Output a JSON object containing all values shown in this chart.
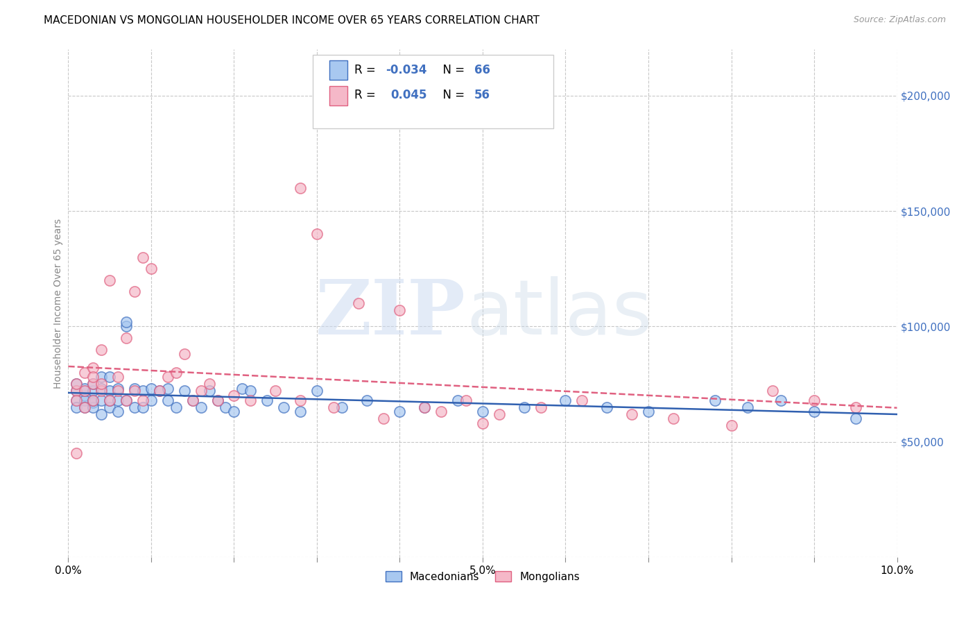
{
  "title": "MACEDONIAN VS MONGOLIAN HOUSEHOLDER INCOME OVER 65 YEARS CORRELATION CHART",
  "source": "Source: ZipAtlas.com",
  "ylabel": "Householder Income Over 65 years",
  "xlim": [
    0.0,
    0.1
  ],
  "ylim": [
    0,
    220000
  ],
  "yticks": [
    0,
    50000,
    100000,
    150000,
    200000
  ],
  "background_color": "#ffffff",
  "grid_color": "#c8c8c8",
  "macedonian_face_color": "#a8c8f0",
  "mongolian_face_color": "#f5b8c8",
  "macedonian_edge_color": "#4070c0",
  "mongolian_edge_color": "#e06080",
  "macedonian_line_color": "#3060b0",
  "mongolian_line_color": "#e06080",
  "axis_color": "#4070c0",
  "macedonian_scatter_x": [
    0.001,
    0.001,
    0.001,
    0.001,
    0.002,
    0.002,
    0.002,
    0.002,
    0.002,
    0.003,
    0.003,
    0.003,
    0.003,
    0.003,
    0.004,
    0.004,
    0.004,
    0.004,
    0.005,
    0.005,
    0.005,
    0.005,
    0.006,
    0.006,
    0.006,
    0.007,
    0.007,
    0.007,
    0.008,
    0.008,
    0.009,
    0.009,
    0.01,
    0.01,
    0.011,
    0.012,
    0.012,
    0.013,
    0.014,
    0.015,
    0.016,
    0.017,
    0.018,
    0.019,
    0.02,
    0.021,
    0.022,
    0.024,
    0.026,
    0.028,
    0.03,
    0.033,
    0.036,
    0.04,
    0.043,
    0.047,
    0.05,
    0.055,
    0.06,
    0.065,
    0.07,
    0.078,
    0.082,
    0.086,
    0.09,
    0.095
  ],
  "macedonian_scatter_y": [
    72000,
    68000,
    75000,
    65000,
    70000,
    68000,
    72000,
    65000,
    73000,
    67000,
    72000,
    65000,
    68000,
    75000,
    62000,
    68000,
    73000,
    78000,
    65000,
    72000,
    68000,
    78000,
    63000,
    68000,
    73000,
    68000,
    100000,
    102000,
    65000,
    73000,
    65000,
    72000,
    68000,
    73000,
    72000,
    68000,
    73000,
    65000,
    72000,
    68000,
    65000,
    72000,
    68000,
    65000,
    63000,
    73000,
    72000,
    68000,
    65000,
    63000,
    72000,
    65000,
    68000,
    63000,
    65000,
    68000,
    63000,
    65000,
    68000,
    65000,
    63000,
    68000,
    65000,
    68000,
    63000,
    60000
  ],
  "mongolian_scatter_x": [
    0.001,
    0.001,
    0.001,
    0.001,
    0.002,
    0.002,
    0.002,
    0.003,
    0.003,
    0.003,
    0.003,
    0.004,
    0.004,
    0.004,
    0.005,
    0.005,
    0.006,
    0.006,
    0.007,
    0.007,
    0.008,
    0.008,
    0.009,
    0.009,
    0.01,
    0.011,
    0.012,
    0.013,
    0.014,
    0.015,
    0.016,
    0.017,
    0.018,
    0.02,
    0.022,
    0.025,
    0.028,
    0.032,
    0.038,
    0.043,
    0.048,
    0.052,
    0.057,
    0.062,
    0.068,
    0.073,
    0.08,
    0.085,
    0.09,
    0.095,
    0.028,
    0.03,
    0.035,
    0.04,
    0.045,
    0.05
  ],
  "mongolian_scatter_y": [
    72000,
    68000,
    75000,
    45000,
    72000,
    65000,
    80000,
    75000,
    82000,
    68000,
    78000,
    90000,
    72000,
    75000,
    68000,
    120000,
    72000,
    78000,
    68000,
    95000,
    115000,
    72000,
    68000,
    130000,
    125000,
    72000,
    78000,
    80000,
    88000,
    68000,
    72000,
    75000,
    68000,
    70000,
    68000,
    72000,
    68000,
    65000,
    60000,
    65000,
    68000,
    62000,
    65000,
    68000,
    62000,
    60000,
    57000,
    72000,
    68000,
    65000,
    160000,
    140000,
    110000,
    107000,
    63000,
    58000
  ]
}
